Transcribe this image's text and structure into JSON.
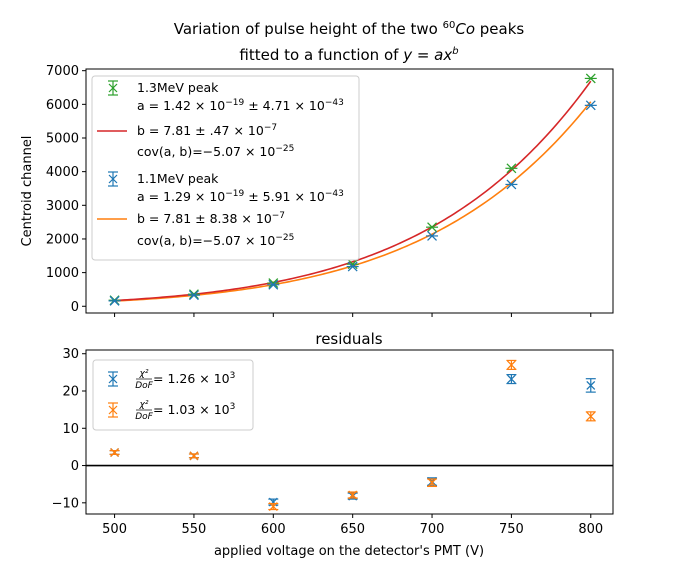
{
  "chart_data": [
    {
      "type": "scatter",
      "panel": "top",
      "title_line1_pre": "Variation of pulse height of the two ",
      "title_line1_sup": "60",
      "title_line1_co": "Co",
      "title_line1_post": " peaks",
      "title_line2_pre": "fitted to a function of ",
      "title_line2_eq": "y = ax",
      "title_line2_sup": "b",
      "ylabel": "Centroid channel",
      "xlim": [
        482,
        814
      ],
      "ylim": [
        -200,
        7050
      ],
      "xticks": [
        "500",
        "550",
        "600",
        "650",
        "700",
        "750",
        "800"
      ],
      "yticks": [
        "0",
        "1000",
        "2000",
        "3000",
        "4000",
        "5000",
        "6000",
        "7000"
      ],
      "legend_position": "upper-left",
      "series": [
        {
          "name": "1.3MeV peak",
          "color": "#2ca02c",
          "marker": "x",
          "x": [
            500,
            550,
            600,
            650,
            700,
            750,
            800
          ],
          "y": [
            180,
            360,
            690,
            1250,
            2350,
            4100,
            6770
          ],
          "fit_color": "#d62728",
          "fit_a": 1.42e-19,
          "fit_b": 7.81,
          "legend_lines": [
            "1.3MeV peak",
            "a = 1.42 × 10⁻¹⁹ ± 4.71 × 10⁻⁴³",
            "b = 7.81 ± .47 × 10⁻⁷",
            "cov(a, b) = −5.07 × 10⁻²⁵"
          ]
        },
        {
          "name": "1.1MeV peak",
          "color": "#1f77b4",
          "marker": "x",
          "x": [
            500,
            550,
            600,
            650,
            700,
            750,
            800
          ],
          "y": [
            160,
            330,
            640,
            1180,
            2090,
            3620,
            5970
          ],
          "fit_color": "#ff7f0e",
          "fit_a": 1.29e-19,
          "fit_b": 7.81,
          "legend_lines": [
            "1.1MeV peak",
            "a = 1.29 × 10⁻¹⁹ ± 5.91 × 10⁻⁴³",
            "b = 7.81 ± 8.38 × 10⁻⁷",
            "cov(a, b) = −5.07 × 10⁻²⁵"
          ]
        }
      ]
    },
    {
      "type": "scatter",
      "panel": "bottom",
      "title": "residuals",
      "xlabel": "applied voltage on the detector's PMT (V)",
      "xlim": [
        482,
        814
      ],
      "ylim": [
        -13,
        31
      ],
      "xticks": [
        "500",
        "550",
        "600",
        "650",
        "700",
        "750",
        "800"
      ],
      "yticks": [
        "−10",
        "0",
        "10",
        "20",
        "30"
      ],
      "hline_y": 0,
      "legend_position": "upper-left",
      "series": [
        {
          "name": "χ²/DoF = 1.26 × 10³",
          "color": "#1f77b4",
          "marker": "x",
          "x": [
            500,
            550,
            600,
            650,
            700,
            750,
            800
          ],
          "y": [
            3.5,
            2.6,
            -9.8,
            -8.2,
            -4.3,
            23.2,
            21.5
          ],
          "err": [
            0.5,
            0.5,
            0.8,
            0.8,
            1.0,
            1.2,
            1.8
          ]
        },
        {
          "name": "χ²/DoF = 1.03 × 10³",
          "color": "#ff7f0e",
          "marker": "x",
          "x": [
            500,
            550,
            600,
            650,
            700,
            750,
            800
          ],
          "y": [
            3.5,
            2.6,
            -11.0,
            -7.9,
            -4.6,
            27.0,
            13.2
          ],
          "err": [
            0.5,
            0.5,
            0.8,
            0.8,
            1.0,
            1.2,
            1.2
          ]
        }
      ]
    }
  ],
  "legend_top": {
    "p13_label": "1.3MeV peak",
    "p13_a_pre": "a = 1.42 × 10",
    "p13_a_exp1": "−19",
    "p13_a_mid": " ± 4.71 × 10",
    "p13_a_exp2": "−43",
    "p13_b_pre": "b = 7.81 ± .47 × 10",
    "p13_b_exp": "−7",
    "p13_cov_pre": "cov(a, b)=−5.07 × 10",
    "p13_cov_exp": "−25",
    "p11_label": "1.1MeV peak",
    "p11_a_pre": "a = 1.29 × 10",
    "p11_a_exp1": "−19",
    "p11_a_mid": " ± 5.91 × 10",
    "p11_a_exp2": "−43",
    "p11_b_pre": "b = 7.81 ± 8.38 × 10",
    "p11_b_exp": "−7",
    "p11_cov_pre": "cov(a, b)=−5.07 × 10",
    "p11_cov_exp": "−25"
  },
  "legend_bottom": {
    "blue_chi_num": "χ²",
    "blue_chi_den": "DoF",
    "blue_val_pre": " = 1.26 × 10",
    "blue_val_exp": "3",
    "orange_chi_num": "χ²",
    "orange_chi_den": "DoF",
    "orange_val_pre": " = 1.03 × 10",
    "orange_val_exp": "3"
  }
}
